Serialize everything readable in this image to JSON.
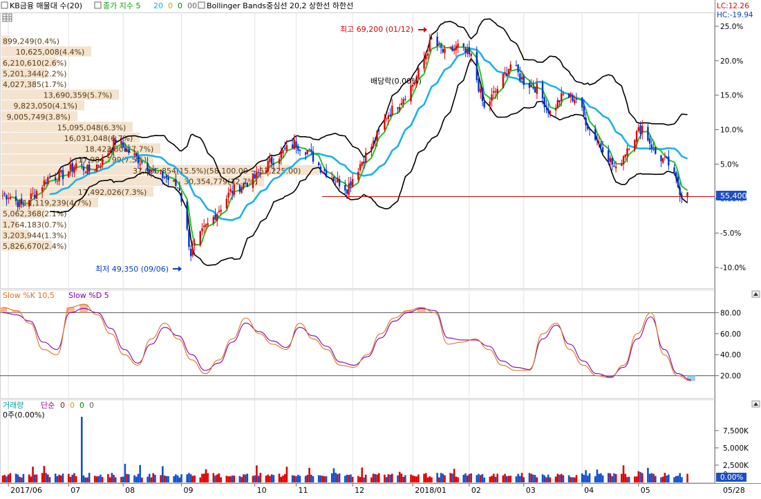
{
  "header": {
    "symbol_label": "KB금융 매물대 수(20)",
    "ma_label": "종가 지수 5",
    "ma_p2": "20",
    "ma_p3": "0",
    "ma_p4": "0",
    "ma_p5": "00",
    "bb_label": "Bollinger Bands중심선 20,2  상한선  하한선",
    "lc": "LC:12.26",
    "hc": "HC:-19.94"
  },
  "price_axis": {
    "ticks": [
      "25.0%",
      "20.0%",
      "15.0%",
      "10.0%",
      "5.0%",
      "0.00%",
      "-5.0%",
      "-10.0%"
    ],
    "current_price": "55,400"
  },
  "annotations": {
    "high": "최고 69,200 (01/12)",
    "low": "최저 49,350 (09/06)",
    "dividend": "배당락(0.00%)"
  },
  "volume_profile": [
    {
      "label": "899,249(0.4%)",
      "frac": 0.012
    },
    {
      "label": "10,625,008(4.4%)",
      "frac": 0.13
    },
    {
      "label": "6,210,610(2.6%)",
      "frac": 0.08
    },
    {
      "label": "5,201,344(2.2%)",
      "frac": 0.066
    },
    {
      "label": "4,027,385(1.7%)",
      "frac": 0.05
    },
    {
      "label": "13,690,359(5.7%)",
      "frac": 0.17
    },
    {
      "label": "9,823,050(4.1%)",
      "frac": 0.12
    },
    {
      "label": "9,005,749(3.8%)",
      "frac": 0.11
    },
    {
      "label": "15,095,048(6.3%)",
      "frac": 0.19
    },
    {
      "label": "16,031,048(6.7%)",
      "frac": 0.2
    },
    {
      "label": "18,423,807(7.7%)",
      "frac": 0.23
    },
    {
      "label": "17,984,799(7.5%)",
      "frac": 0.22
    },
    {
      "label": "37,056,854(15.5%)(58,100.00 ~ 57,225.00)",
      "frac": 0.46
    },
    {
      "label": "30,354,779(12.7%)",
      "frac": 0.38
    },
    {
      "label": "17,492,026(7.3%)",
      "frac": 0.22
    },
    {
      "label": "11,119,239(4.7%)",
      "frac": 0.14
    },
    {
      "label": "5,062,368(2.1%)",
      "frac": 0.063
    },
    {
      "label": "1,764,183(0.7%)",
      "frac": 0.022
    },
    {
      "label": "3,203,944(1.3%)",
      "frac": 0.04
    },
    {
      "label": "5,826,670(2.4%)",
      "frac": 0.073
    }
  ],
  "stochastic": {
    "label_k": "Slow %K 10,5",
    "label_d": "Slow %D 5",
    "ticks": [
      "80.00",
      "60.00",
      "40.00",
      "20.00"
    ]
  },
  "volume": {
    "label": "거래량",
    "label_simple": "단순",
    "params": [
      "0",
      "0",
      "0",
      "0"
    ],
    "info": "0주(0.00%)",
    "ticks": [
      "7,500K",
      "5,000K",
      "2,500K",
      "0"
    ],
    "current": "0.00%"
  },
  "x_axis": {
    "labels": [
      "2017/06",
      "07",
      "08",
      "09",
      "10",
      "11",
      "12",
      "2018/01",
      "02",
      "03",
      "04",
      "05",
      "05/28"
    ]
  },
  "chart_data": {
    "type": "candlestick",
    "y_unit": "% change from reference",
    "ylim": [
      -13,
      27
    ],
    "months_x": [
      "2017/06",
      "07",
      "08",
      "09",
      "10",
      "11",
      "12",
      "2018/01",
      "02",
      "03",
      "04",
      "05"
    ],
    "close_path": [
      {
        "x": "2017-06-01",
        "y": 0.5
      },
      {
        "x": "2017-06-08",
        "y": -1.0
      },
      {
        "x": "2017-06-15",
        "y": 0.8
      },
      {
        "x": "2017-06-22",
        "y": 3.0
      },
      {
        "x": "2017-07-01",
        "y": 3.5
      },
      {
        "x": "2017-07-07",
        "y": 5.0
      },
      {
        "x": "2017-07-14",
        "y": 4.0
      },
      {
        "x": "2017-07-21",
        "y": 5.5
      },
      {
        "x": "2017-07-28",
        "y": 8.5
      },
      {
        "x": "2017-08-03",
        "y": 7.0
      },
      {
        "x": "2017-08-10",
        "y": 5.5
      },
      {
        "x": "2017-08-17",
        "y": 4.0
      },
      {
        "x": "2017-08-24",
        "y": 3.0
      },
      {
        "x": "2017-08-31",
        "y": 1.5
      },
      {
        "x": "2017-09-06",
        "y": -8.0
      },
      {
        "x": "2017-09-13",
        "y": -4.5
      },
      {
        "x": "2017-09-20",
        "y": -2.0
      },
      {
        "x": "2017-09-27",
        "y": 1.0
      },
      {
        "x": "2017-10-10",
        "y": 3.0
      },
      {
        "x": "2017-10-17",
        "y": 5.0
      },
      {
        "x": "2017-10-24",
        "y": 6.5
      },
      {
        "x": "2017-10-31",
        "y": 8.0
      },
      {
        "x": "2017-11-07",
        "y": 7.0
      },
      {
        "x": "2017-11-14",
        "y": 4.5
      },
      {
        "x": "2017-11-21",
        "y": 3.0
      },
      {
        "x": "2017-11-28",
        "y": 1.5
      },
      {
        "x": "2017-12-05",
        "y": 5.0
      },
      {
        "x": "2017-12-12",
        "y": 8.0
      },
      {
        "x": "2017-12-19",
        "y": 12.0
      },
      {
        "x": "2017-12-26",
        "y": 14.0
      },
      {
        "x": "2018-01-03",
        "y": 17.0
      },
      {
        "x": "2018-01-12",
        "y": 23.0
      },
      {
        "x": "2018-01-19",
        "y": 21.0
      },
      {
        "x": "2018-01-26",
        "y": 22.0
      },
      {
        "x": "2018-02-02",
        "y": 20.5
      },
      {
        "x": "2018-02-09",
        "y": 13.0
      },
      {
        "x": "2018-02-16",
        "y": 16.0
      },
      {
        "x": "2018-02-23",
        "y": 19.5
      },
      {
        "x": "2018-03-02",
        "y": 17.0
      },
      {
        "x": "2018-03-09",
        "y": 16.0
      },
      {
        "x": "2018-03-16",
        "y": 12.5
      },
      {
        "x": "2018-03-23",
        "y": 15.0
      },
      {
        "x": "2018-03-30",
        "y": 14.5
      },
      {
        "x": "2018-04-06",
        "y": 10.0
      },
      {
        "x": "2018-04-13",
        "y": 7.5
      },
      {
        "x": "2018-04-20",
        "y": 4.0
      },
      {
        "x": "2018-04-27",
        "y": 8.0
      },
      {
        "x": "2018-05-04",
        "y": 10.5
      },
      {
        "x": "2018-05-11",
        "y": 6.5
      },
      {
        "x": "2018-05-18",
        "y": 5.0
      },
      {
        "x": "2018-05-25",
        "y": 0.5
      },
      {
        "x": "2018-05-28",
        "y": 1.5
      }
    ],
    "series": [
      {
        "name": "Slow %K 10,5",
        "values_path": [
          85,
          82,
          70,
          45,
          40,
          85,
          88,
          78,
          60,
          40,
          30,
          55,
          70,
          55,
          35,
          22,
          35,
          55,
          75,
          60,
          50,
          45,
          70,
          55,
          45,
          30,
          28,
          40,
          60,
          75,
          82,
          85,
          80,
          50,
          52,
          55,
          45,
          30,
          25,
          25,
          60,
          70,
          45,
          30,
          20,
          18,
          30,
          60,
          80,
          40,
          20,
          15
        ]
      },
      {
        "name": "Slow %D 5",
        "values_path": [
          80,
          78,
          72,
          52,
          45,
          80,
          84,
          80,
          65,
          45,
          32,
          50,
          66,
          58,
          40,
          25,
          32,
          52,
          70,
          62,
          53,
          47,
          66,
          58,
          48,
          33,
          30,
          38,
          56,
          72,
          80,
          84,
          82,
          56,
          54,
          54,
          48,
          34,
          28,
          26,
          55,
          68,
          50,
          34,
          22,
          19,
          28,
          55,
          76,
          45,
          22,
          16
        ]
      }
    ],
    "volume_unit": "K shares",
    "volume_spike": {
      "x": "2017-07-10",
      "value": 9500
    }
  }
}
